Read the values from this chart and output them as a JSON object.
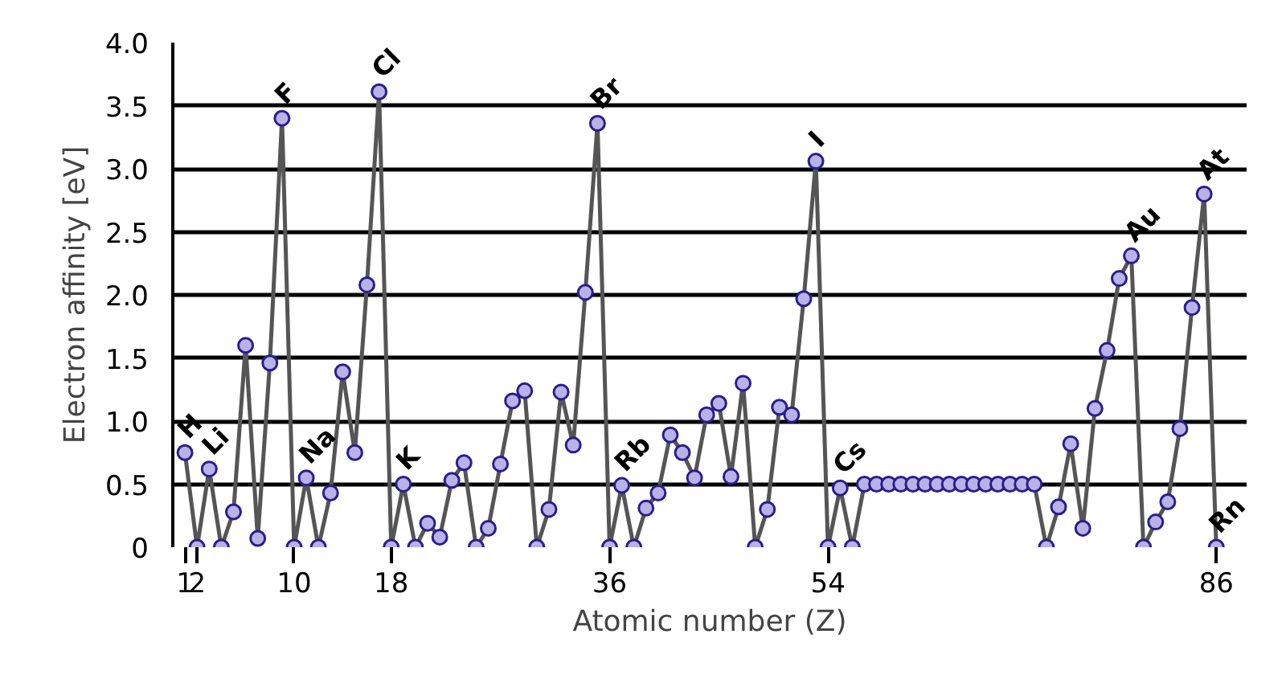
{
  "chart_data": {
    "type": "line",
    "xlabel": "Atomic number (Z)",
    "ylabel": "Electron affinity [eV]",
    "x": [
      1,
      2,
      3,
      4,
      5,
      6,
      7,
      8,
      9,
      10,
      11,
      12,
      13,
      14,
      15,
      16,
      17,
      18,
      19,
      20,
      21,
      22,
      23,
      24,
      25,
      26,
      27,
      28,
      29,
      30,
      31,
      32,
      33,
      34,
      35,
      36,
      37,
      38,
      39,
      40,
      41,
      42,
      43,
      44,
      45,
      46,
      47,
      48,
      49,
      50,
      51,
      52,
      53,
      54,
      55,
      56,
      57,
      58,
      59,
      60,
      61,
      62,
      63,
      64,
      65,
      66,
      67,
      68,
      69,
      70,
      71,
      72,
      73,
      74,
      75,
      76,
      77,
      78,
      79,
      80,
      81,
      82,
      83,
      84,
      85,
      86
    ],
    "series": [
      {
        "color": "#555555",
        "values": [
          0.75,
          0,
          0.62,
          0,
          0.28,
          1.6,
          0.07,
          1.46,
          3.4,
          0,
          0.55,
          0,
          0.43,
          1.39,
          0.75,
          2.08,
          3.61,
          0,
          0.5,
          0,
          0.19,
          0.08,
          0.53,
          0.67,
          0,
          0.15,
          0.66,
          1.16,
          1.24,
          0,
          0.3,
          1.23,
          0.81,
          2.02,
          3.36,
          0,
          0.49,
          0,
          0.31,
          0.43,
          0.89,
          0.75,
          0.55,
          1.05,
          1.14,
          0.56,
          1.3,
          0,
          0.3,
          1.11,
          1.05,
          1.97,
          3.06,
          0,
          0.47,
          0,
          0.5,
          0.5,
          0.5,
          0.5,
          0.5,
          0.5,
          0.5,
          0.5,
          0.5,
          0.5,
          0.5,
          0.5,
          0.5,
          0.5,
          0.5,
          0,
          0.32,
          0.82,
          0.15,
          1.1,
          1.56,
          2.13,
          2.31,
          0,
          0.2,
          0.36,
          0.94,
          1.9,
          2.8,
          0
        ]
      }
    ],
    "xlim": [
      0,
      88.5
    ],
    "ylim": [
      0,
      4
    ],
    "xticks": [
      1,
      2,
      10,
      18,
      36,
      54,
      86
    ],
    "yticks": [
      0,
      {
        "value": 0.5,
        "label": "0.5"
      },
      {
        "value": 1,
        "label": "1.0"
      },
      {
        "value": 1.5,
        "label": "1.5"
      },
      {
        "value": 2,
        "label": "2.0"
      },
      {
        "value": 2.5,
        "label": "2.5"
      },
      {
        "value": 3,
        "label": "3.0"
      },
      {
        "value": 3.5,
        "label": "3.5"
      },
      {
        "value": 4,
        "label": "4.0"
      }
    ],
    "grid": "y",
    "marker": "circle",
    "line_style": "solid",
    "annotations": [
      {
        "text": "H",
        "x": 1,
        "y": 0.75
      },
      {
        "text": "Li",
        "x": 3,
        "y": 0.62
      },
      {
        "text": "F",
        "x": 9,
        "y": 3.4
      },
      {
        "text": "Na",
        "x": 11,
        "y": 0.55
      },
      {
        "text": "Cl",
        "x": 17,
        "y": 3.61
      },
      {
        "text": "K",
        "x": 19,
        "y": 0.5
      },
      {
        "text": "Br",
        "x": 35,
        "y": 3.36
      },
      {
        "text": "Rb",
        "x": 37,
        "y": 0.49
      },
      {
        "text": "I",
        "x": 53,
        "y": 3.06
      },
      {
        "text": "Cs",
        "x": 55,
        "y": 0.47
      },
      {
        "text": "Au",
        "x": 79,
        "y": 2.31
      },
      {
        "text": "At",
        "x": 85,
        "y": 2.8
      },
      {
        "text": "Rn",
        "x": 86,
        "y": 0
      }
    ]
  }
}
